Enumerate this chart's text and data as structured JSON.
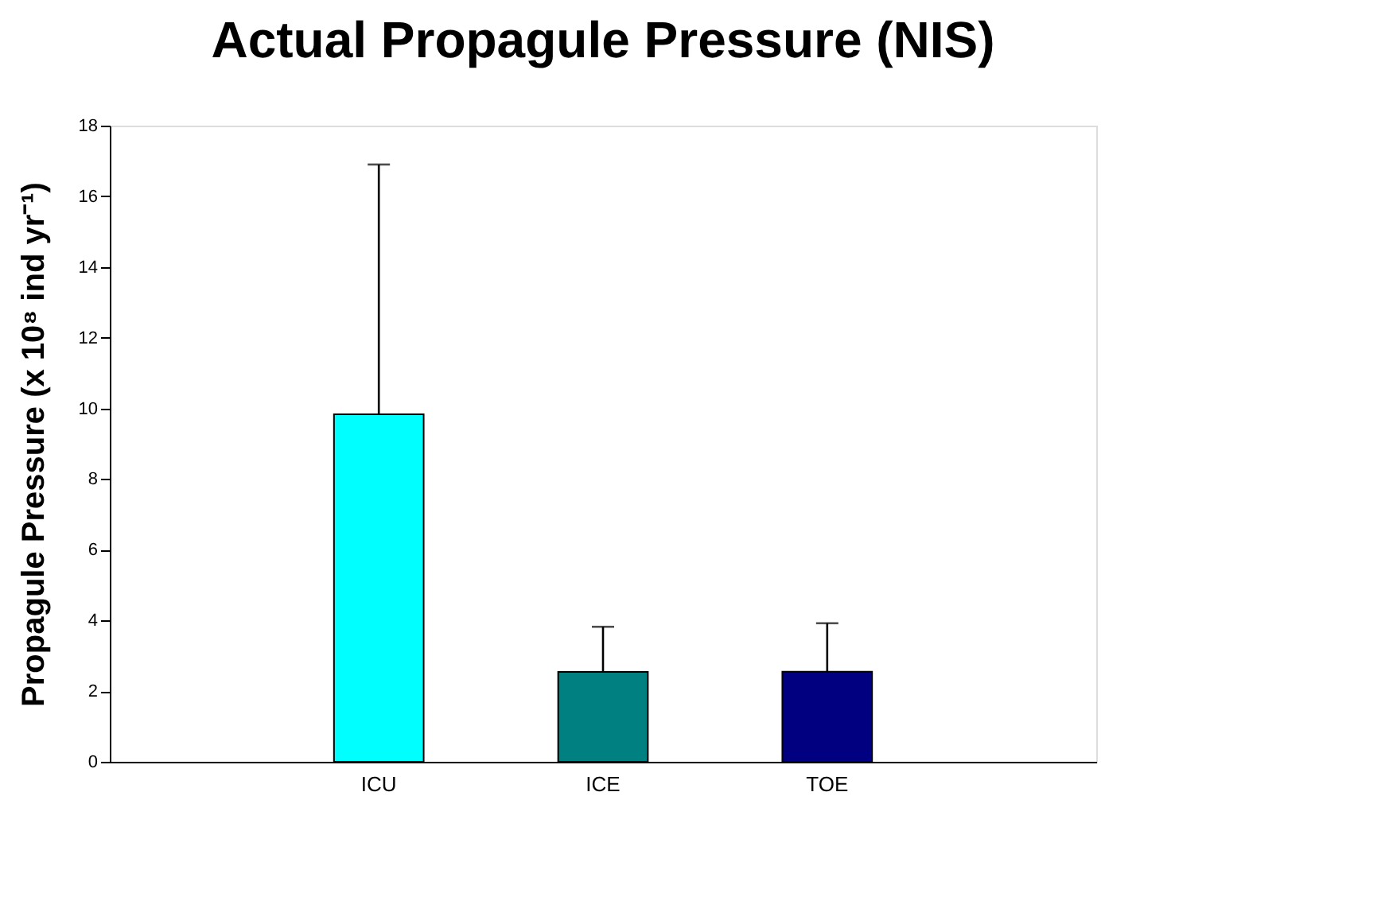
{
  "chart_data": {
    "type": "bar",
    "title": "Actual Propagule Pressure (NIS)",
    "ylabel": "Propagule Pressure (x 10⁸ ind yr⁻¹)",
    "categories": [
      "ICU",
      "ICE",
      "TOE"
    ],
    "values": [
      9.83,
      2.54,
      2.55
    ],
    "colors": [
      "#00ffff",
      "#008080",
      "#000080"
    ],
    "errors": [
      [
        9.83,
        16.9
      ],
      [
        2.54,
        3.82
      ],
      [
        2.55,
        3.92
      ]
    ],
    "ylim": [
      0,
      18
    ],
    "yticks": [
      0,
      2,
      4,
      6,
      8,
      10,
      12,
      14,
      16,
      18
    ],
    "grid": false,
    "legend": false
  }
}
